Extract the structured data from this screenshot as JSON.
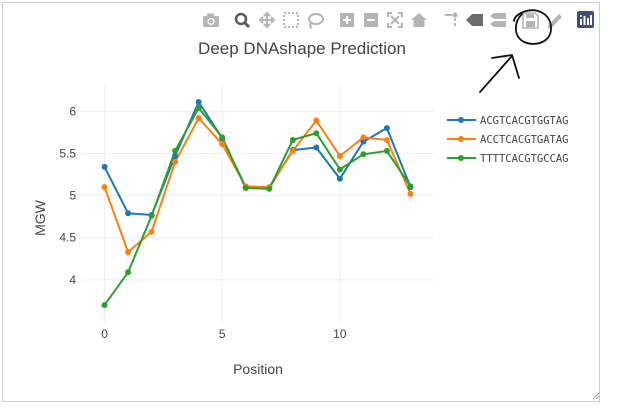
{
  "chart_data": {
    "type": "line",
    "title": "Deep DNAshape Prediction",
    "xlabel": "Position",
    "ylabel": "MGW",
    "x": [
      0,
      1,
      2,
      3,
      4,
      5,
      6,
      7,
      8,
      9,
      10,
      11,
      12,
      13
    ],
    "xlim": [
      -1,
      14
    ],
    "ylim": [
      3.5,
      6.3
    ],
    "xticks": [
      0,
      5,
      10
    ],
    "xtick_labels": [
      "0",
      "5",
      "10"
    ],
    "yticks": [
      4,
      4.5,
      5,
      5.5,
      6
    ],
    "ytick_labels": [
      "4",
      "4.5",
      "5",
      "5.5",
      "6"
    ],
    "grid": true,
    "legend_position": "right",
    "series": [
      {
        "name": "ACGTCACGTGGTAG",
        "color": "#1f77b4",
        "values": [
          5.34,
          4.79,
          4.77,
          5.47,
          6.11,
          5.68,
          5.1,
          5.09,
          5.54,
          5.57,
          5.2,
          5.64,
          5.8,
          5.1
        ]
      },
      {
        "name": "ACCTCACGTGATAG",
        "color": "#ff7f0e",
        "values": [
          5.1,
          4.33,
          4.57,
          5.4,
          5.92,
          5.61,
          5.11,
          5.1,
          5.53,
          5.89,
          5.47,
          5.69,
          5.66,
          5.02
        ]
      },
      {
        "name": "TTTTCACGTGCCAG",
        "color": "#2ca02c",
        "values": [
          3.7,
          4.09,
          4.76,
          5.53,
          6.04,
          5.69,
          5.09,
          5.08,
          5.66,
          5.74,
          5.31,
          5.49,
          5.53,
          5.11
        ]
      }
    ]
  },
  "modebar": {
    "icons": [
      "camera-icon",
      "zoom-icon",
      "pan-icon",
      "box-select-icon",
      "lasso-icon",
      "zoom-in-icon",
      "zoom-out-icon",
      "autoscale-icon",
      "reset-axes-icon",
      "spike-lines-icon",
      "hover-closest-icon",
      "hover-compare-icon",
      "save-icon",
      "edit-icon",
      "plotly-logo-icon"
    ]
  }
}
